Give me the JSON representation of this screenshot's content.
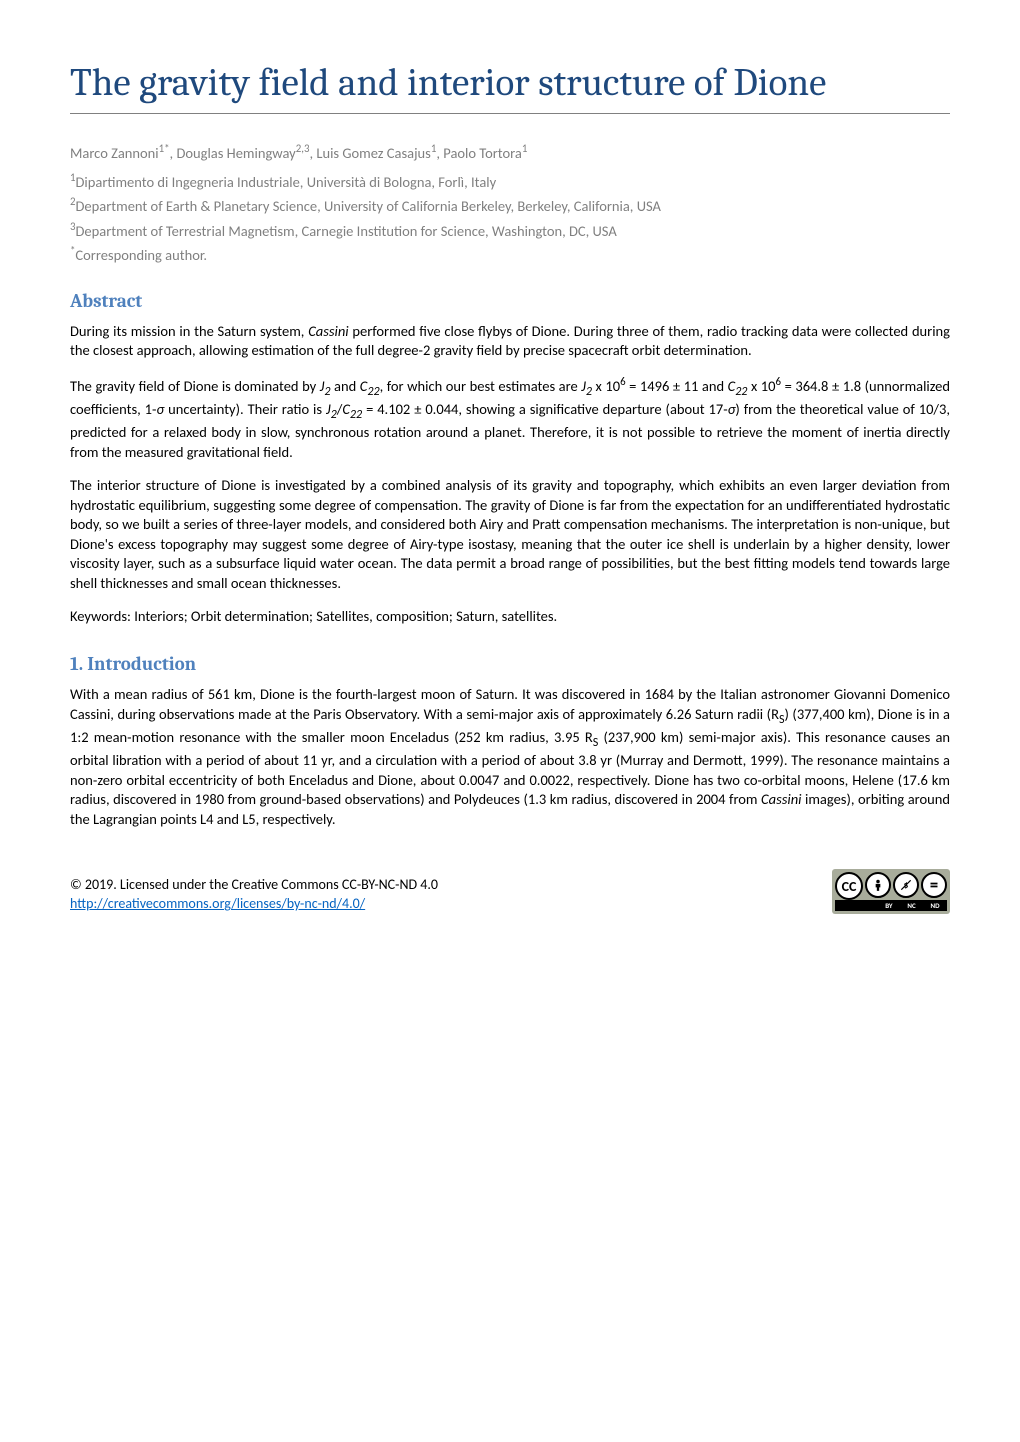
{
  "title": "The gravity field and interior structure of Dione",
  "authors_html": "Marco Zannoni<sup>1*</sup>, Douglas Hemingway<sup>2,3</sup>, Luis Gomez Casajus<sup>1</sup>, Paolo Tortora<sup>1</sup>",
  "affiliations": [
    "<sup>1</sup>Dipartimento di Ingegneria Industriale, Università di Bologna, Forlì, Italy",
    "<sup>2</sup>Department of Earth & Planetary Science, University of California Berkeley, Berkeley, California, USA",
    "<sup>3</sup>Department of Terrestrial Magnetism, Carnegie Institution for Science, Washington, DC, USA",
    "<sup>*</sup>Corresponding author."
  ],
  "sections": {
    "abstract": {
      "heading": "Abstract",
      "paragraphs": [
        "During its mission in the Saturn system, <i>Cassini</i> performed five close flybys of Dione. During three of them, radio tracking data were collected during the closest approach, allowing estimation of the full degree-2 gravity field by precise spacecraft orbit determination.",
        "The gravity field of Dione is dominated by <i>J<sub>2</sub></i> and <i>C<sub>22</sub></i>, for which our best estimates are <i>J<sub>2</sub></i> x 10<sup>6</sup> = 1496 ± 11 and <i>C<sub>22</sub></i> x 10<sup>6</sup> = 364.8 ± 1.8 (unnormalized coefficients, 1-<i>σ</i> uncertainty). Their ratio is <i>J<sub>2</sub></i>/<i>C<sub>22</sub></i> = 4.102 ± 0.044, showing a significative departure (about 17-<i>σ</i>) from the theoretical value of 10/3, predicted for a relaxed body in slow, synchronous rotation around a planet. Therefore, it is not possible to retrieve the moment of inertia directly from the measured gravitational field.",
        "The interior structure of Dione is investigated by a combined analysis of its gravity and topography, which exhibits an even larger deviation from hydrostatic equilibrium, suggesting some degree of compensation. The gravity of Dione is far from the expectation for an undifferentiated hydrostatic body, so we built a series of three-layer models, and considered both Airy and Pratt compensation mechanisms. The interpretation is non-unique, but Dione's excess topography may suggest some degree of Airy-type isostasy, meaning that the outer ice shell is underlain by a higher density, lower viscosity layer, such as a subsurface liquid water ocean. The data permit a broad range of possibilities, but the best fitting models tend towards large shell thicknesses and small ocean thicknesses.",
        "Keywords: Interiors; Orbit determination; Satellites, composition; Saturn, satellites."
      ]
    },
    "introduction": {
      "heading": "1. Introduction",
      "paragraphs": [
        "With a mean radius of 561 km, Dione is the fourth-largest moon of Saturn. It was discovered in 1684 by the Italian astronomer Giovanni Domenico Cassini, during observations made at the Paris Observatory. With a semi-major axis of approximately 6.26 Saturn radii (R<sub>S</sub>) (377,400 km), Dione is in a 1:2 mean-motion resonance with the smaller moon Enceladus (252 km radius, 3.95 R<sub>S</sub> (237,900 km) semi-major axis). This resonance causes an orbital libration with a period of about 11 yr, and a circulation with a period of about 3.8 yr (Murray and Dermott, 1999). The resonance maintains a non-zero orbital eccentricity of both Enceladus and Dione, about 0.0047 and 0.0022, respectively. Dione has two co-orbital moons, Helene (17.6 km radius, discovered in 1980 from ground-based observations) and Polydeuces (1.3 km radius, discovered in 2004 from <i>Cassini</i> images), orbiting around the Lagrangian points L4 and L5, respectively."
      ]
    }
  },
  "footer": {
    "copyright": "© 2019. Licensed under the Creative Commons CC-BY-NC-ND 4.0",
    "license_url": "http://creativecommons.org/licenses/by-nc-nd/4.0/",
    "cc_labels": [
      "BY",
      "NC",
      "ND"
    ]
  },
  "colors": {
    "title": "#1f497d",
    "heading": "#4f81bd",
    "author_gray": "#7f7f7f",
    "link": "#0563c1",
    "cc_bg": "#a8ac9b",
    "rule": "#808080"
  },
  "typography": {
    "title_fontsize": 39,
    "title_family": "Cambria",
    "heading_fontsize": 19,
    "body_fontsize": 14.5,
    "footer_fontsize": 14
  }
}
